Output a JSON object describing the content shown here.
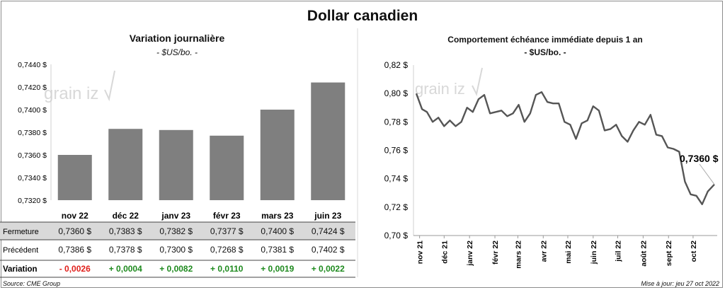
{
  "title": "Dollar canadien",
  "source": "Source: CME Group",
  "updated": "Mise à jour: jeu 27 oct 2022",
  "colors": {
    "bar": "#7f7f7f",
    "line": "#555555",
    "negative": "#e0201b",
    "positive": "#1e8a1e",
    "band": "#d9d9d9"
  },
  "watermark": {
    "left": "grain",
    "right": "iz",
    "logo": "grainwiz-logo"
  },
  "chart_data": [
    {
      "type": "bar",
      "title": "Variation  journalière",
      "subtitle": "- $US/bo. -",
      "categories": [
        "nov 22",
        "déc 22",
        "janv 23",
        "févr 23",
        "mars 23",
        "juin 23"
      ],
      "values": [
        0.736,
        0.7383,
        0.7382,
        0.7377,
        0.74,
        0.7424
      ],
      "ylim": [
        0.732,
        0.744
      ],
      "yticks": [
        "0,7440 $",
        "0,7420 $",
        "0,7400 $",
        "0,7380 $",
        "0,7360 $",
        "0,7340 $",
        "0,7320 $"
      ],
      "ytick_values": [
        0.744,
        0.742,
        0.74,
        0.738,
        0.736,
        0.734,
        0.732
      ],
      "table": {
        "rows": [
          {
            "label": "Fermeture",
            "values": [
              "0,7360 $",
              "0,7383 $",
              "0,7382 $",
              "0,7377 $",
              "0,7400 $",
              "0,7424 $"
            ]
          },
          {
            "label": "Précédent",
            "values": [
              "0,7386 $",
              "0,7378 $",
              "0,7300 $",
              "0,7268 $",
              "0,7381 $",
              "0,7402 $"
            ]
          },
          {
            "label": "Variation",
            "values": [
              "- 0,0026",
              "+ 0,0004",
              "+ 0,0082",
              "+ 0,0110",
              "+ 0,0019",
              "+ 0,0022"
            ]
          }
        ]
      }
    },
    {
      "type": "line",
      "title": "Comportement échéance immédiate depuis 1 an",
      "subtitle": "- $US/bo. -",
      "ylim": [
        0.7,
        0.82
      ],
      "yticks": [
        "0,82 $",
        "0,80 $",
        "0,78 $",
        "0,76 $",
        "0,74 $",
        "0,72 $",
        "0,70 $"
      ],
      "ytick_values": [
        0.82,
        0.8,
        0.78,
        0.76,
        0.74,
        0.72,
        0.7
      ],
      "xticks": [
        "nov 21",
        "déc 21",
        "janv 22",
        "févr 22",
        "mars 22",
        "avr 22",
        "mai 22",
        "juin 22",
        "juil 22",
        "août 22",
        "sept 22",
        "oct 22"
      ],
      "x": [
        "2021-10-28",
        "2021-11-04",
        "2021-11-10",
        "2021-11-17",
        "2021-11-24",
        "2021-12-01",
        "2021-12-08",
        "2021-12-15",
        "2021-12-22",
        "2021-12-29",
        "2022-01-05",
        "2022-01-12",
        "2022-01-19",
        "2022-01-26",
        "2022-02-02",
        "2022-02-09",
        "2022-02-16",
        "2022-02-23",
        "2022-03-02",
        "2022-03-09",
        "2022-03-16",
        "2022-03-23",
        "2022-03-30",
        "2022-04-06",
        "2022-04-13",
        "2022-04-20",
        "2022-04-27",
        "2022-05-04",
        "2022-05-11",
        "2022-05-18",
        "2022-05-25",
        "2022-06-01",
        "2022-06-08",
        "2022-06-15",
        "2022-06-22",
        "2022-06-29",
        "2022-07-06",
        "2022-07-13",
        "2022-07-20",
        "2022-07-27",
        "2022-08-03",
        "2022-08-10",
        "2022-08-17",
        "2022-08-24",
        "2022-08-31",
        "2022-09-07",
        "2022-09-14",
        "2022-09-21",
        "2022-09-28",
        "2022-10-05",
        "2022-10-12",
        "2022-10-19",
        "2022-10-27"
      ],
      "values": [
        0.8,
        0.789,
        0.787,
        0.78,
        0.783,
        0.777,
        0.781,
        0.777,
        0.78,
        0.79,
        0.787,
        0.796,
        0.799,
        0.786,
        0.787,
        0.788,
        0.784,
        0.786,
        0.792,
        0.78,
        0.786,
        0.799,
        0.801,
        0.794,
        0.793,
        0.793,
        0.78,
        0.778,
        0.768,
        0.779,
        0.781,
        0.791,
        0.788,
        0.774,
        0.775,
        0.778,
        0.77,
        0.766,
        0.774,
        0.78,
        0.778,
        0.785,
        0.771,
        0.77,
        0.762,
        0.761,
        0.759,
        0.738,
        0.729,
        0.728,
        0.722,
        0.731,
        0.736
      ],
      "annotation": "0,7360 $"
    }
  ]
}
